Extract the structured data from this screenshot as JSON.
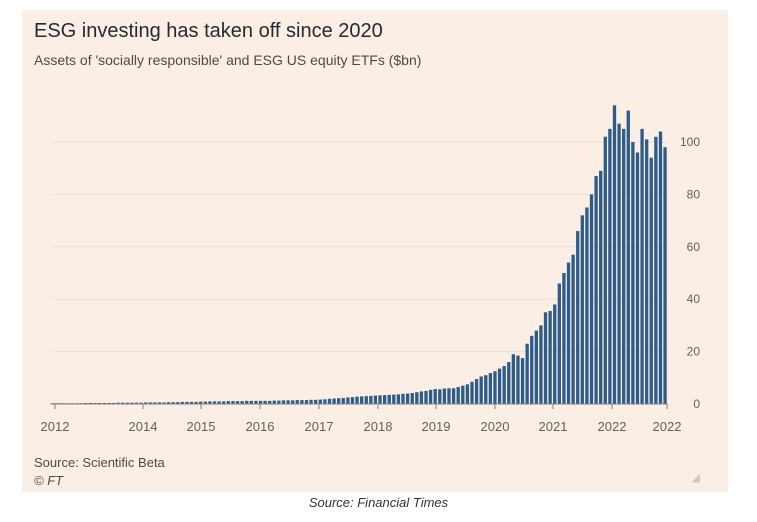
{
  "chart_data": {
    "type": "bar",
    "title": "ESG investing has taken off since 2020",
    "subtitle": "Assets of 'socially responsible' and ESG US equity ETFs ($bn)",
    "xlabel": "",
    "ylabel": "",
    "ylim": [
      0,
      115
    ],
    "y_ticks": [
      0,
      20,
      40,
      60,
      80,
      100
    ],
    "x_ticks": [
      "2012",
      "2014",
      "2015",
      "2016",
      "2017",
      "2018",
      "2019",
      "2020",
      "2021",
      "2022",
      "2022"
    ],
    "grid": true,
    "bar_color": "#2e5c8a",
    "x_start": "2012-01",
    "frequency": "monthly",
    "values": [
      0.3,
      0.3,
      0.3,
      0.3,
      0.3,
      0.3,
      0.3,
      0.4,
      0.4,
      0.4,
      0.4,
      0.4,
      0.4,
      0.4,
      0.5,
      0.5,
      0.5,
      0.5,
      0.5,
      0.5,
      0.6,
      0.6,
      0.6,
      0.6,
      0.6,
      0.7,
      0.7,
      0.7,
      0.8,
      0.8,
      0.8,
      0.8,
      0.9,
      0.9,
      1.0,
      1.0,
      1.0,
      1.0,
      1.1,
      1.1,
      1.1,
      1.1,
      1.2,
      1.2,
      1.2,
      1.2,
      1.2,
      1.2,
      1.3,
      1.3,
      1.4,
      1.4,
      1.4,
      1.5,
      1.5,
      1.5,
      1.6,
      1.6,
      1.7,
      1.8,
      2.0,
      2.1,
      2.2,
      2.3,
      2.5,
      2.6,
      2.8,
      2.9,
      3.0,
      3.1,
      3.2,
      3.3,
      3.4,
      3.5,
      3.6,
      3.7,
      3.9,
      4.0,
      4.2,
      4.5,
      4.8,
      5.0,
      5.4,
      5.7,
      5.6,
      5.9,
      6.0,
      6.0,
      6.5,
      7.0,
      7.5,
      8.5,
      9.5,
      10.5,
      11.0,
      11.8,
      12.5,
      13.5,
      14.5,
      16.0,
      19.0,
      18.5,
      17.5,
      23.0,
      26.0,
      28.0,
      30.0,
      35.0,
      35.5,
      38.0,
      46.0,
      50.0,
      54.0,
      57.0,
      66.0,
      72.0,
      75.0,
      80.0,
      87.0,
      89.0,
      102.0,
      105.0,
      114.0,
      107.0,
      105.0,
      112.0,
      100.0,
      96.0,
      105.0,
      101.0,
      94.0,
      102.0,
      104.0,
      98.0
    ]
  },
  "footer": {
    "source": "Source: Scientific Beta",
    "credit": "© FT",
    "resize_glyph": "◢"
  },
  "caption": "Source: Financial Times"
}
